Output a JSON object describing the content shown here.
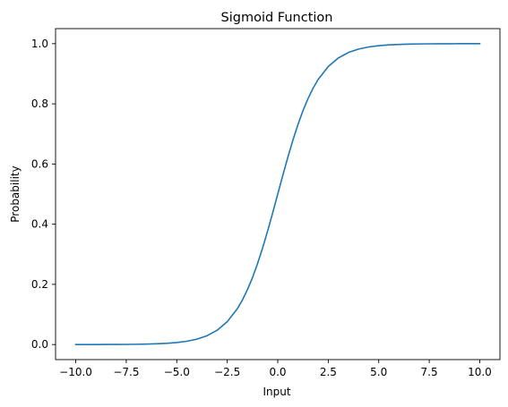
{
  "chart_data": {
    "type": "line",
    "title": "Sigmoid Function",
    "xlabel": "Input",
    "ylabel": "Probability",
    "xlim": [
      -11.0,
      11.0
    ],
    "ylim": [
      -0.05,
      1.05
    ],
    "grid": false,
    "xticks": [
      -10.0,
      -7.5,
      -5.0,
      -2.5,
      0.0,
      2.5,
      5.0,
      7.5,
      10.0
    ],
    "xtick_labels": [
      "−10.0",
      "−7.5",
      "−5.0",
      "−2.5",
      "0.0",
      "2.5",
      "5.0",
      "7.5",
      "10.0"
    ],
    "yticks": [
      0.0,
      0.2,
      0.4,
      0.6,
      0.8,
      1.0
    ],
    "ytick_labels": [
      "0.0",
      "0.2",
      "0.4",
      "0.6",
      "0.8",
      "1.0"
    ],
    "series": [
      {
        "color": "#1f77b4",
        "x": [
          -10,
          -9.5,
          -9,
          -8.5,
          -8,
          -7.5,
          -7,
          -6.5,
          -6,
          -5.5,
          -5,
          -4.5,
          -4,
          -3.5,
          -3,
          -2.5,
          -2,
          -1.75,
          -1.5,
          -1.25,
          -1,
          -0.75,
          -0.5,
          -0.25,
          0,
          0.25,
          0.5,
          0.75,
          1,
          1.25,
          1.5,
          1.75,
          2,
          2.5,
          3,
          3.5,
          4,
          4.5,
          5,
          5.5,
          6,
          6.5,
          7,
          7.5,
          8,
          8.5,
          9,
          9.5,
          10
        ],
        "y": [
          5e-05,
          7e-05,
          0.00012,
          0.0002,
          0.00034,
          0.00055,
          0.00091,
          0.0015,
          0.00247,
          0.00407,
          0.00669,
          0.01099,
          0.01799,
          0.0293,
          0.04743,
          0.07586,
          0.1192,
          0.148,
          0.18243,
          0.2227,
          0.26894,
          0.32082,
          0.37754,
          0.43782,
          0.5,
          0.56218,
          0.62246,
          0.67918,
          0.73106,
          0.7773,
          0.81757,
          0.852,
          0.8808,
          0.92414,
          0.95257,
          0.9707,
          0.98201,
          0.98901,
          0.99331,
          0.99593,
          0.99753,
          0.9985,
          0.99909,
          0.99945,
          0.99966,
          0.9998,
          0.99988,
          0.99993,
          0.99995
        ]
      }
    ]
  }
}
